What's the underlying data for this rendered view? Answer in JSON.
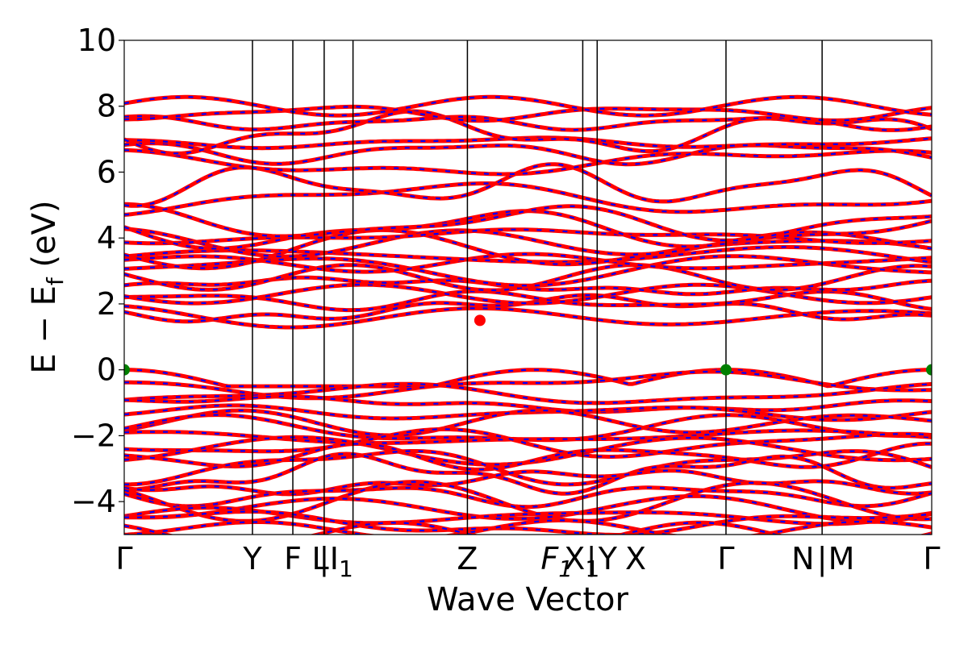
{
  "chart_data": {
    "type": "line",
    "xlabel": "Wave Vector",
    "ylabel_parts": [
      "E − E",
      "f",
      " (eV)"
    ],
    "ylim": [
      -5,
      10
    ],
    "yticks": [
      -4,
      -2,
      0,
      2,
      4,
      6,
      8,
      10
    ],
    "ytick_labels": [
      "−4",
      "−2",
      "0",
      "2",
      "4",
      "6",
      "8",
      "10"
    ],
    "xlim": [
      0,
      4.2
    ],
    "kpoint_positions": [
      0,
      0.667,
      0.877,
      1.04,
      1.19,
      1.785,
      2.385,
      2.46,
      3.13,
      3.63,
      4.2
    ],
    "xtick_labels": [
      {
        "x": 0,
        "label": "Γ"
      },
      {
        "x": 0.667,
        "label": "Y"
      },
      {
        "x": 0.877,
        "label": "F"
      },
      {
        "x": 1.02,
        "label": "L"
      },
      {
        "x": 1.04,
        "label": "|"
      },
      {
        "x": 1.13,
        "label": "I",
        "sub": "1"
      },
      {
        "x": 1.785,
        "label": "Z"
      },
      {
        "x": 2.25,
        "label": "F",
        "sub": "1",
        "italic": true
      },
      {
        "x": 2.38,
        "label": "X",
        "sub": "1"
      },
      {
        "x": 2.43,
        "label": "|"
      },
      {
        "x": 2.515,
        "label": "Y"
      },
      {
        "x": 2.66,
        "label": "X"
      },
      {
        "x": 3.13,
        "label": "Γ"
      },
      {
        "x": 3.53,
        "label": "N"
      },
      {
        "x": 3.63,
        "label": "|"
      },
      {
        "x": 3.73,
        "label": "M"
      },
      {
        "x": 4.2,
        "label": "Γ"
      }
    ],
    "series_styles": [
      {
        "color": "#ff0000",
        "dash": "none"
      },
      {
        "color": "#0000ff",
        "dash": "dashed"
      }
    ],
    "band_count": 52,
    "conduction_bands_eV": [
      1.6,
      1.85,
      2.1,
      2.3,
      2.55,
      2.8,
      3.05,
      3.25,
      3.45,
      3.65,
      3.85,
      4.05,
      4.25,
      4.45,
      5.2,
      5.6,
      6.3,
      6.6,
      6.9,
      7.2,
      7.5,
      7.8,
      8.0
    ],
    "valence_bands_eV": [
      0.0,
      -0.45,
      -0.75,
      -1.05,
      -1.3,
      -1.6,
      -1.85,
      -2.05,
      -2.25,
      -2.45,
      -2.65,
      -2.9,
      -3.15,
      -3.4,
      -3.8,
      -4.0,
      -4.2,
      -4.45,
      -4.65,
      -4.85,
      -5.0
    ],
    "markers": [
      {
        "name": "VBM",
        "x": 0,
        "y": 0.0,
        "color": "#008000"
      },
      {
        "name": "VBM",
        "x": 3.13,
        "y": 0.0,
        "color": "#008000"
      },
      {
        "name": "VBM",
        "x": 4.2,
        "y": 0.0,
        "color": "#008000"
      },
      {
        "name": "CBM",
        "x": 1.85,
        "y": 1.5,
        "color": "#ff0000"
      }
    ]
  }
}
